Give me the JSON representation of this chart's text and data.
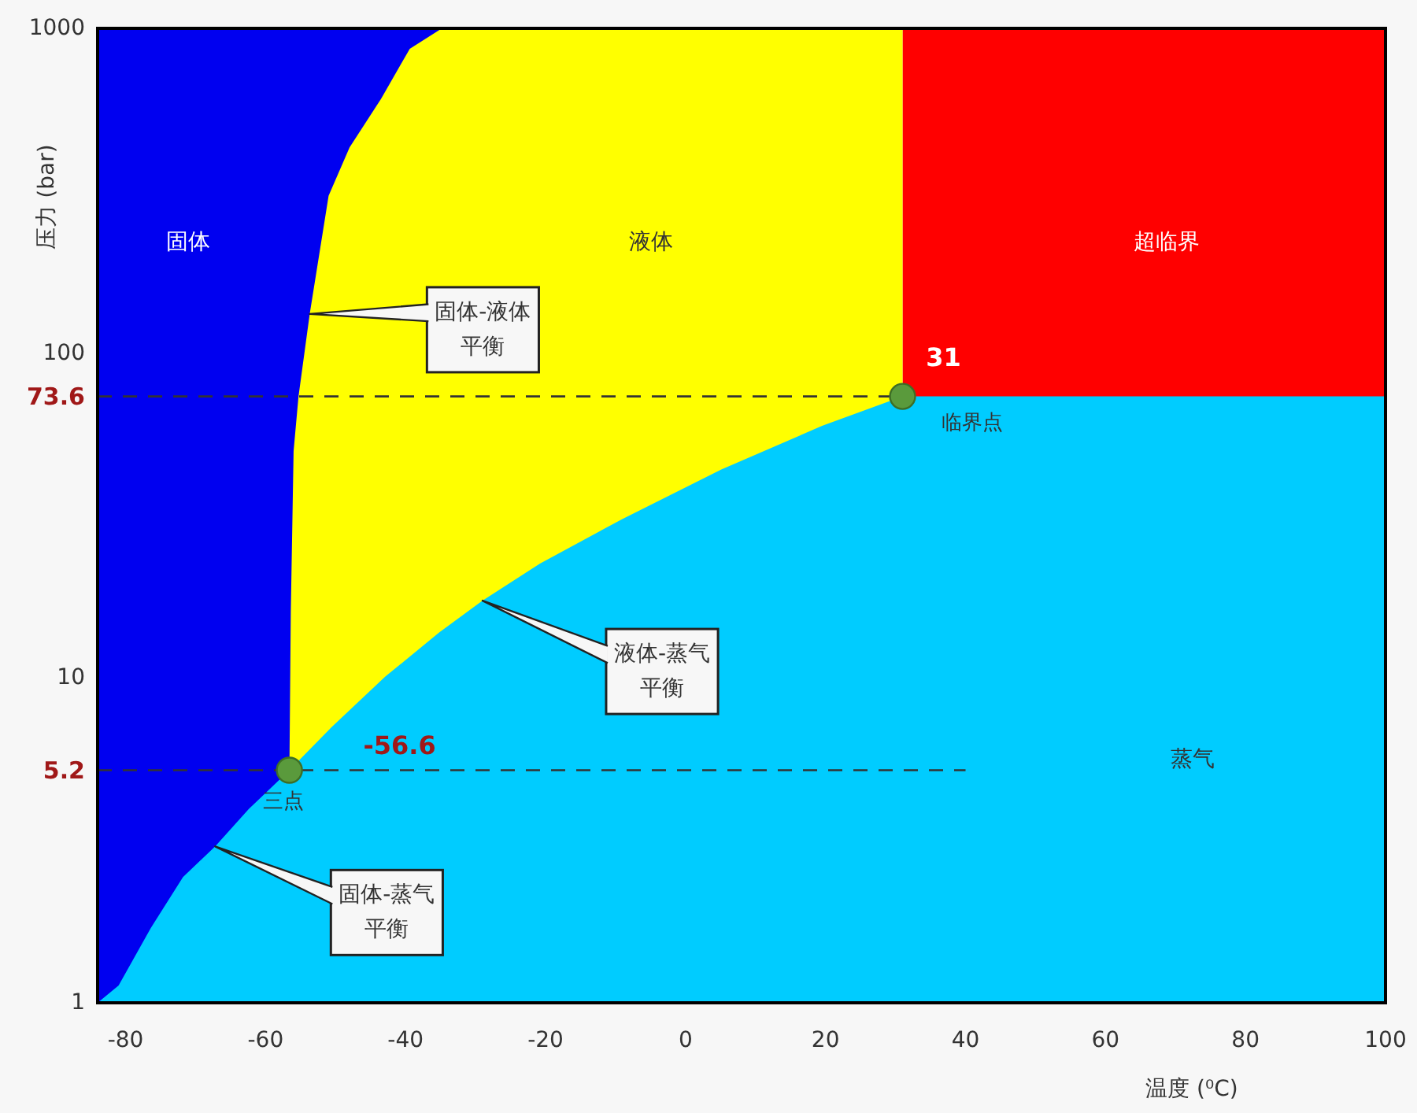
{
  "chart_data": {
    "type": "area",
    "xlabel": "温度 (⁰C)",
    "ylabel": "压力 (bar)",
    "log": "y",
    "xlim": [
      -84,
      100
    ],
    "xticks": [
      -80,
      -60,
      -40,
      -20,
      0,
      20,
      40,
      60,
      80,
      100
    ],
    "ylim": [
      1,
      1000
    ],
    "yticks": [
      1,
      {
        "value": 5.2,
        "label": "5.2"
      },
      10,
      {
        "value": 73.6,
        "label": "73.6"
      },
      100,
      1000
    ],
    "series": [
      {
        "name": "固体",
        "color": "#0000f0",
        "x": [
          -84,
          -34.8
        ],
        "values": [
          1000,
          1000
        ]
      },
      {
        "name": "超临界",
        "color": "#ff0000",
        "x": [
          31,
          100
        ],
        "values": [
          1000,
          1000
        ]
      },
      {
        "name": "液体",
        "color": "#ffff00",
        "x": [
          -56.6,
          -56.4,
          -56.0,
          -55.3,
          -53.7,
          -51.0,
          -48.0,
          -43.5,
          -39.4,
          -34.8,
          31
        ],
        "values": [
          5.2,
          16,
          50,
          73.5,
          132,
          305,
          430,
          607,
          865,
          1000,
          1000
        ]
      },
      {
        "name": "蒸气",
        "color": "#00ccff",
        "x": [
          -84,
          -81,
          -76.4,
          -71.8,
          -67.2,
          -62.4,
          -56.6,
          -50.6,
          -42.9,
          -35.2,
          -29.0,
          -20.8,
          -9.1,
          5.1,
          19.5,
          31,
          100
        ],
        "values": [
          1,
          1.13,
          1.7,
          2.44,
          3.03,
          3.95,
          5.2,
          7.05,
          10.1,
          13.8,
          17.3,
          22.5,
          30.8,
          43.8,
          59.7,
          73.6,
          73.6
        ]
      },
      {
        "type": "line",
        "color": "#333333",
        "line_style": "dashed",
        "x": [
          -84,
          31
        ],
        "values": [
          73.6,
          73.6
        ]
      },
      {
        "type": "line",
        "color": "#333333",
        "line_style": "dashed",
        "x": [
          -84,
          40
        ],
        "values": [
          5.2,
          5.2
        ]
      },
      {
        "type": "scatter",
        "color": "#5a9a3c",
        "marker": "circle",
        "x": [
          -56.6,
          31
        ],
        "values": [
          5.2,
          73.6
        ]
      }
    ],
    "annotations": [
      {
        "text": "-56.6",
        "x": -56.6,
        "y": 5.2
      },
      {
        "text": "三点",
        "x": -56.6,
        "y": 5.2
      },
      {
        "text": "31",
        "x": 31,
        "y": 73.6
      },
      {
        "text": "临界点",
        "x": 31,
        "y": 73.6
      },
      {
        "text": "固体-液体平衡",
        "x": -53.7,
        "y": 132
      },
      {
        "text": "液体-蒸气平衡",
        "x": -29.0,
        "y": 17.3
      },
      {
        "text": "固体-蒸气平衡",
        "x": -67.2,
        "y": 3.03
      }
    ]
  }
}
